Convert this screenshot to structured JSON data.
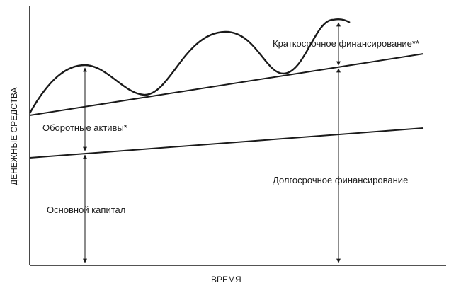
{
  "diagram": {
    "axis_x_label": "ВРЕМЯ",
    "axis_y_label": "ДЕНЕЖНЫЕ СРЕДСТВА",
    "labels": {
      "short_term_financing": "Краткосрочное финансирование**",
      "current_assets": "Оборотные активы*",
      "long_term_financing": "Долгосрочное финансирование",
      "fixed_capital": "Основной капитал"
    },
    "colors": {
      "line": "#1a1a1a",
      "background": "#ffffff"
    }
  }
}
